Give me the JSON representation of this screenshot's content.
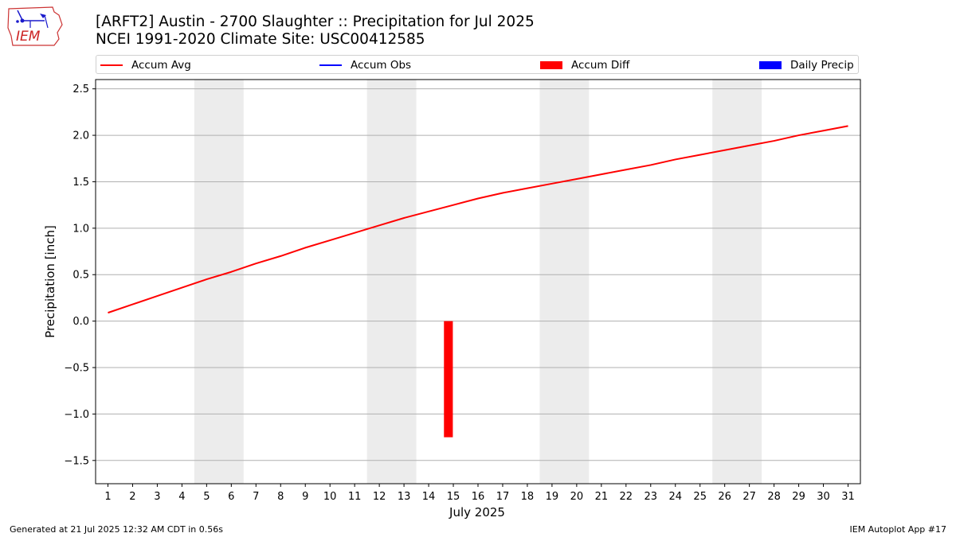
{
  "logo": {
    "text": "IEM"
  },
  "header": {
    "title_line1": "[ARFT2] Austin - 2700 Slaughter :: Precipitation for Jul 2025",
    "title_line2": "NCEI 1991-2020 Climate Site: USC00412585"
  },
  "legend": [
    {
      "label": "Accum Avg",
      "kind": "line",
      "color": "#ff0000"
    },
    {
      "label": "Accum Obs",
      "kind": "line",
      "color": "#0000ff"
    },
    {
      "label": "Accum Diff",
      "kind": "box",
      "color": "#ff0000"
    },
    {
      "label": "Daily Precip",
      "kind": "box",
      "color": "#0000ff"
    }
  ],
  "footer": {
    "left": "Generated at 21 Jul 2025 12:32 AM CDT in 0.56s",
    "right": "IEM Autoplot App #17"
  },
  "chart_data": {
    "type": "line",
    "xlabel": "July 2025",
    "ylabel": "Precipitation [inch]",
    "ylim": [
      -1.75,
      2.6
    ],
    "xlim": [
      0.5,
      31.5
    ],
    "yticks": [
      -1.5,
      -1.0,
      -0.5,
      0.0,
      0.5,
      1.0,
      1.5,
      2.0,
      2.5
    ],
    "ytick_labels": [
      "−1.5",
      "−1.0",
      "−0.5",
      "0.0",
      "0.5",
      "1.0",
      "1.5",
      "2.0",
      "2.5"
    ],
    "grid": "horizontal",
    "legend_position": "top",
    "x": [
      1,
      2,
      3,
      4,
      5,
      6,
      7,
      8,
      9,
      10,
      11,
      12,
      13,
      14,
      15,
      16,
      17,
      18,
      19,
      20,
      21,
      22,
      23,
      24,
      25,
      26,
      27,
      28,
      29,
      30,
      31
    ],
    "xtick_labels": [
      "1",
      "2",
      "3",
      "4",
      "5",
      "6",
      "7",
      "8",
      "9",
      "10",
      "11",
      "12",
      "13",
      "14",
      "15",
      "16",
      "17",
      "18",
      "19",
      "20",
      "21",
      "22",
      "23",
      "24",
      "25",
      "26",
      "27",
      "28",
      "29",
      "30",
      "31"
    ],
    "weekend_bands": [
      [
        4.5,
        6.5
      ],
      [
        11.5,
        13.5
      ],
      [
        18.5,
        20.5
      ],
      [
        25.5,
        27.5
      ]
    ],
    "band_color": "#ececec",
    "series": [
      {
        "name": "Accum Avg",
        "type": "line",
        "color": "#ff0000",
        "values": [
          0.09,
          0.18,
          0.27,
          0.36,
          0.45,
          0.53,
          0.62,
          0.7,
          0.79,
          0.87,
          0.95,
          1.03,
          1.11,
          1.18,
          1.25,
          1.32,
          1.38,
          1.43,
          1.48,
          1.53,
          1.58,
          1.63,
          1.68,
          1.74,
          1.79,
          1.84,
          1.89,
          1.94,
          2.0,
          2.05,
          2.1
        ]
      },
      {
        "name": "Accum Diff",
        "type": "bar",
        "color": "#ff0000",
        "points": [
          {
            "x": 14.8,
            "value": -1.25
          }
        ]
      }
    ]
  }
}
